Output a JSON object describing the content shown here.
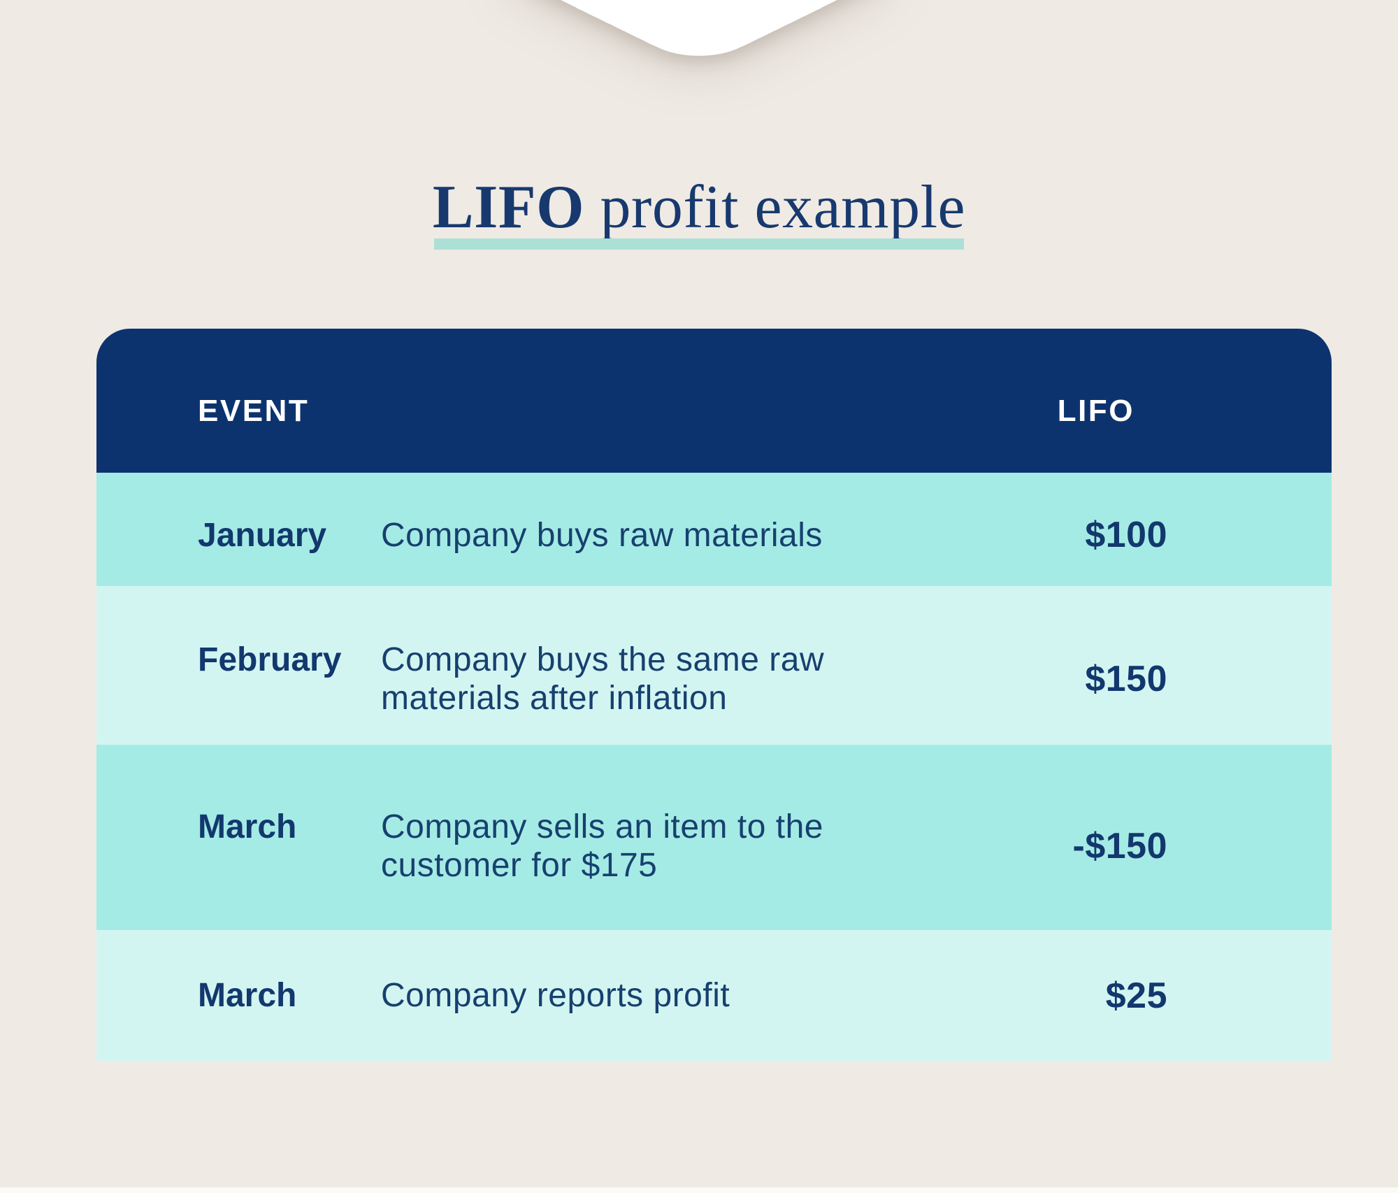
{
  "colors": {
    "background": "#EFEAE4",
    "chevron": "#FFFFFF",
    "header_bg": "#0D336F",
    "header_text": "#FFFFFF",
    "row_teal": "#A5EBE5",
    "row_teal_light": "#D3F5F2",
    "title_text": "#17396E",
    "title_underline": "#ACE0D7",
    "month_text": "#12386E",
    "description_text": "#17406F",
    "value_text": "#12386E",
    "bottom_strip": "#FBFAF7"
  },
  "title": {
    "highlight": "LIFO",
    "rest": " profit example"
  },
  "table": {
    "header": {
      "event_label": "EVENT",
      "lifo_label": "LIFO"
    },
    "rows": [
      {
        "month": "January",
        "description": "Company buys raw materials",
        "value": "$100"
      },
      {
        "month": "February",
        "description": "Company buys the same raw\nmaterials after inflation",
        "value": "$150"
      },
      {
        "month": "March",
        "description": "Company sells an item to the\ncustomer for $175",
        "value": "-$150"
      },
      {
        "month": "March",
        "description": "Company reports profit",
        "value": "$25"
      }
    ]
  },
  "chart_data": {
    "type": "table",
    "title": "LIFO profit example",
    "columns": [
      "EVENT month",
      "EVENT description",
      "LIFO"
    ],
    "rows": [
      [
        "January",
        "Company buys raw materials",
        "$100"
      ],
      [
        "February",
        "Company buys the same raw materials after inflation",
        "$150"
      ],
      [
        "March",
        "Company sells an item to the customer for $175",
        "-$150"
      ],
      [
        "March",
        "Company reports profit",
        "$25"
      ]
    ]
  }
}
